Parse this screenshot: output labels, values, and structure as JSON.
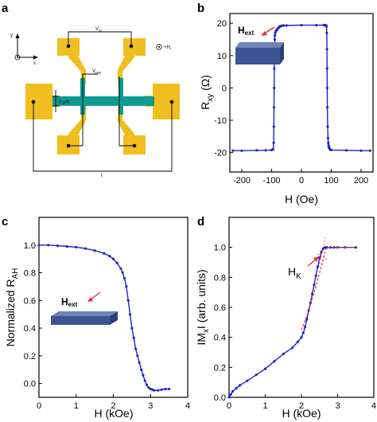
{
  "panels": {
    "a": "a",
    "b": "b",
    "c": "c",
    "d": "d"
  },
  "schematic": {
    "axis_y": "y",
    "axis_x": "x",
    "field": "+H",
    "field_sub": "t",
    "vxx": "V",
    "vxx_sub": "xx",
    "vhall": "V",
    "vhall_sub": "Hall",
    "width": "5 μm",
    "current": "I",
    "colors": {
      "metal": "#f0bf1f",
      "channel": "#0f9b94"
    }
  },
  "insets": {
    "hext_b": "H",
    "hext_c": "H",
    "hext_sub": "ext",
    "hk": "H",
    "hk_sub": "K"
  },
  "chart_data": [
    {
      "panel": "b",
      "type": "line",
      "xlabel": "H (Oe)",
      "ylabel": "R",
      "ylabel_sub": "xy",
      "ylabel_unit": " (Ω)",
      "xlim": [
        -240,
        240
      ],
      "ylim": [
        -26,
        23
      ],
      "xticks": [
        -200,
        -100,
        0,
        100,
        200
      ],
      "yticks": [
        -20,
        -10,
        0,
        10,
        20
      ],
      "series": [
        {
          "color": "#2323c8",
          "x": [
            -230,
            -200,
            -150,
            -120,
            -100,
            -95,
            -93,
            -92.5,
            -92,
            -91.5,
            -91,
            -90.5,
            -90,
            -89.5,
            -89,
            -88,
            -86,
            -84,
            -82,
            -80,
            -78,
            -76,
            -74,
            -72,
            -70,
            -66,
            -60,
            -50,
            0,
            50,
            75,
            80,
            83,
            84,
            85,
            85.5,
            86,
            86.5,
            87,
            88,
            89,
            90,
            91,
            92,
            93,
            96,
            100,
            150,
            200,
            230
          ],
          "y": [
            -19.4,
            -19.4,
            -19.3,
            -19.3,
            -19.2,
            -19.0,
            -17.0,
            -12.0,
            -6.0,
            0.0,
            6.0,
            10.0,
            13.0,
            15.0,
            16.2,
            17.0,
            17.5,
            17.8,
            18.0,
            18.3,
            18.5,
            18.7,
            18.9,
            19.0,
            19.1,
            19.2,
            19.3,
            19.3,
            19.4,
            19.4,
            19.4,
            19.4,
            19.3,
            19.0,
            17.0,
            12.0,
            6.0,
            0.0,
            -6.0,
            -12.0,
            -15.5,
            -17.0,
            -17.8,
            -18.3,
            -18.6,
            -19.0,
            -19.2,
            -19.3,
            -19.4,
            -19.4
          ]
        }
      ]
    },
    {
      "panel": "c",
      "type": "line",
      "xlabel": "H (kOe)",
      "ylabel": "Normalized R",
      "ylabel_sub": "AH",
      "xlim": [
        0,
        4
      ],
      "ylim": [
        -0.1,
        1.2
      ],
      "xticks": [
        0,
        1,
        2,
        3,
        4
      ],
      "yticks": [
        0.0,
        0.2,
        0.4,
        0.6,
        0.8,
        1.0
      ],
      "series": [
        {
          "color": "#2323c8",
          "x": [
            0,
            0.25,
            0.5,
            0.75,
            1.0,
            1.25,
            1.5,
            1.75,
            1.9,
            2.0,
            2.1,
            2.2,
            2.25,
            2.3,
            2.35,
            2.4,
            2.45,
            2.5,
            2.55,
            2.6,
            2.65,
            2.7,
            2.75,
            2.8,
            2.85,
            2.9,
            2.95,
            3.0,
            3.05,
            3.1,
            3.2,
            3.3,
            3.4,
            3.5
          ],
          "y": [
            1.0,
            1.0,
            0.995,
            0.99,
            0.985,
            0.975,
            0.96,
            0.94,
            0.92,
            0.9,
            0.87,
            0.83,
            0.8,
            0.76,
            0.7,
            0.6,
            0.5,
            0.4,
            0.33,
            0.25,
            0.2,
            0.15,
            0.1,
            0.06,
            0.02,
            -0.01,
            -0.03,
            -0.04,
            -0.045,
            -0.05,
            -0.05,
            -0.045,
            -0.04,
            -0.04
          ]
        }
      ]
    },
    {
      "panel": "d",
      "type": "line",
      "xlabel": "H (kOe)",
      "ylabel": "IM",
      "ylabel_sub": "x",
      "ylabel_unit": "I (arb. units)",
      "xlim": [
        0,
        4
      ],
      "ylim": [
        0,
        1.2
      ],
      "xticks": [
        0,
        1,
        2,
        3,
        4
      ],
      "yticks": [
        0.0,
        0.2,
        0.4,
        0.6,
        0.8,
        1.0
      ],
      "series": [
        {
          "color": "#2323c8",
          "x": [
            0,
            0.05,
            0.1,
            0.2,
            0.3,
            0.5,
            0.75,
            1.0,
            1.25,
            1.5,
            1.75,
            1.9,
            2.0,
            2.05,
            2.1,
            2.15,
            2.2,
            2.25,
            2.3,
            2.35,
            2.4,
            2.45,
            2.5,
            2.55,
            2.6,
            2.65,
            2.7,
            2.8,
            2.9,
            3.0,
            3.2,
            3.5
          ],
          "y": [
            0,
            0.02,
            0.04,
            0.06,
            0.08,
            0.11,
            0.15,
            0.19,
            0.24,
            0.29,
            0.33,
            0.37,
            0.4,
            0.43,
            0.47,
            0.52,
            0.58,
            0.63,
            0.69,
            0.75,
            0.81,
            0.87,
            0.93,
            0.97,
            0.99,
            1.0,
            1.0,
            1.0,
            1.0,
            1.0,
            1.0,
            1.0
          ]
        },
        {
          "color": "#e83030",
          "x": [
            2.0,
            2.1,
            2.2,
            2.3,
            2.4,
            2.5,
            2.6,
            2.65,
            2.7,
            2.8,
            2.9,
            3.0,
            3.1,
            3.2,
            3.3,
            3.4,
            3.5
          ],
          "y": [
            0.45,
            0.51,
            0.58,
            0.66,
            0.74,
            0.83,
            0.92,
            0.97,
            1.0,
            1.0,
            1.0,
            1.0,
            1.0,
            1.0,
            1.0,
            1.0,
            1.0
          ]
        }
      ]
    }
  ]
}
